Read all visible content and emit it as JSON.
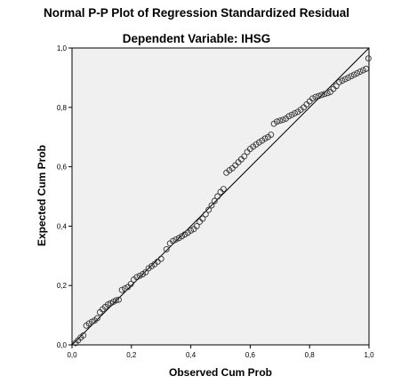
{
  "chart_data": {
    "type": "scatter",
    "title": "Normal P-P Plot of Regression Standardized Residual",
    "subtitle": "Dependent Variable: IHSG",
    "xlabel": "Observed Cum Prob",
    "ylabel": "Expected Cum Prob",
    "xlim": [
      0,
      1
    ],
    "ylim": [
      0,
      1
    ],
    "xticks": [
      "0,0",
      "0,2",
      "0,4",
      "0,6",
      "0,8",
      "1,0"
    ],
    "yticks": [
      "0,0",
      "0,2",
      "0,4",
      "0,6",
      "0,8",
      "1,0"
    ],
    "tick_values": [
      0,
      0.2,
      0.4,
      0.6,
      0.8,
      1.0
    ],
    "reference_line": [
      [
        0,
        0
      ],
      [
        1,
        1
      ]
    ],
    "grid": false,
    "colors": {
      "plot_background": "#f0f0f0",
      "marker_stroke": "#333333",
      "line": "#000000"
    },
    "points": [
      [
        0.012,
        0.006
      ],
      [
        0.02,
        0.015
      ],
      [
        0.029,
        0.025
      ],
      [
        0.038,
        0.032
      ],
      [
        0.048,
        0.065
      ],
      [
        0.057,
        0.072
      ],
      [
        0.067,
        0.078
      ],
      [
        0.076,
        0.082
      ],
      [
        0.085,
        0.09
      ],
      [
        0.094,
        0.11
      ],
      [
        0.103,
        0.12
      ],
      [
        0.112,
        0.128
      ],
      [
        0.121,
        0.136
      ],
      [
        0.13,
        0.14
      ],
      [
        0.139,
        0.145
      ],
      [
        0.148,
        0.15
      ],
      [
        0.157,
        0.152
      ],
      [
        0.168,
        0.185
      ],
      [
        0.178,
        0.19
      ],
      [
        0.188,
        0.195
      ],
      [
        0.198,
        0.205
      ],
      [
        0.208,
        0.22
      ],
      [
        0.218,
        0.228
      ],
      [
        0.228,
        0.233
      ],
      [
        0.238,
        0.238
      ],
      [
        0.248,
        0.245
      ],
      [
        0.258,
        0.258
      ],
      [
        0.268,
        0.265
      ],
      [
        0.278,
        0.272
      ],
      [
        0.288,
        0.28
      ],
      [
        0.3,
        0.29
      ],
      [
        0.318,
        0.322
      ],
      [
        0.33,
        0.342
      ],
      [
        0.34,
        0.35
      ],
      [
        0.35,
        0.355
      ],
      [
        0.36,
        0.36
      ],
      [
        0.37,
        0.366
      ],
      [
        0.38,
        0.372
      ],
      [
        0.39,
        0.378
      ],
      [
        0.4,
        0.385
      ],
      [
        0.41,
        0.39
      ],
      [
        0.42,
        0.4
      ],
      [
        0.43,
        0.415
      ],
      [
        0.44,
        0.425
      ],
      [
        0.45,
        0.44
      ],
      [
        0.46,
        0.455
      ],
      [
        0.47,
        0.47
      ],
      [
        0.48,
        0.485
      ],
      [
        0.49,
        0.5
      ],
      [
        0.5,
        0.515
      ],
      [
        0.51,
        0.525
      ],
      [
        0.52,
        0.58
      ],
      [
        0.53,
        0.588
      ],
      [
        0.54,
        0.595
      ],
      [
        0.55,
        0.605
      ],
      [
        0.56,
        0.615
      ],
      [
        0.57,
        0.625
      ],
      [
        0.58,
        0.635
      ],
      [
        0.59,
        0.65
      ],
      [
        0.6,
        0.66
      ],
      [
        0.61,
        0.668
      ],
      [
        0.62,
        0.675
      ],
      [
        0.63,
        0.682
      ],
      [
        0.64,
        0.688
      ],
      [
        0.65,
        0.695
      ],
      [
        0.66,
        0.7
      ],
      [
        0.67,
        0.708
      ],
      [
        0.68,
        0.745
      ],
      [
        0.69,
        0.752
      ],
      [
        0.7,
        0.755
      ],
      [
        0.71,
        0.758
      ],
      [
        0.72,
        0.762
      ],
      [
        0.73,
        0.77
      ],
      [
        0.74,
        0.775
      ],
      [
        0.75,
        0.78
      ],
      [
        0.76,
        0.785
      ],
      [
        0.77,
        0.792
      ],
      [
        0.78,
        0.8
      ],
      [
        0.79,
        0.81
      ],
      [
        0.8,
        0.82
      ],
      [
        0.81,
        0.83
      ],
      [
        0.82,
        0.835
      ],
      [
        0.83,
        0.838
      ],
      [
        0.84,
        0.842
      ],
      [
        0.85,
        0.845
      ],
      [
        0.86,
        0.848
      ],
      [
        0.87,
        0.852
      ],
      [
        0.88,
        0.862
      ],
      [
        0.89,
        0.872
      ],
      [
        0.9,
        0.885
      ],
      [
        0.91,
        0.89
      ],
      [
        0.92,
        0.895
      ],
      [
        0.93,
        0.9
      ],
      [
        0.94,
        0.905
      ],
      [
        0.95,
        0.91
      ],
      [
        0.96,
        0.915
      ],
      [
        0.97,
        0.92
      ],
      [
        0.98,
        0.925
      ],
      [
        0.99,
        0.93
      ],
      [
        0.998,
        0.965
      ]
    ]
  }
}
